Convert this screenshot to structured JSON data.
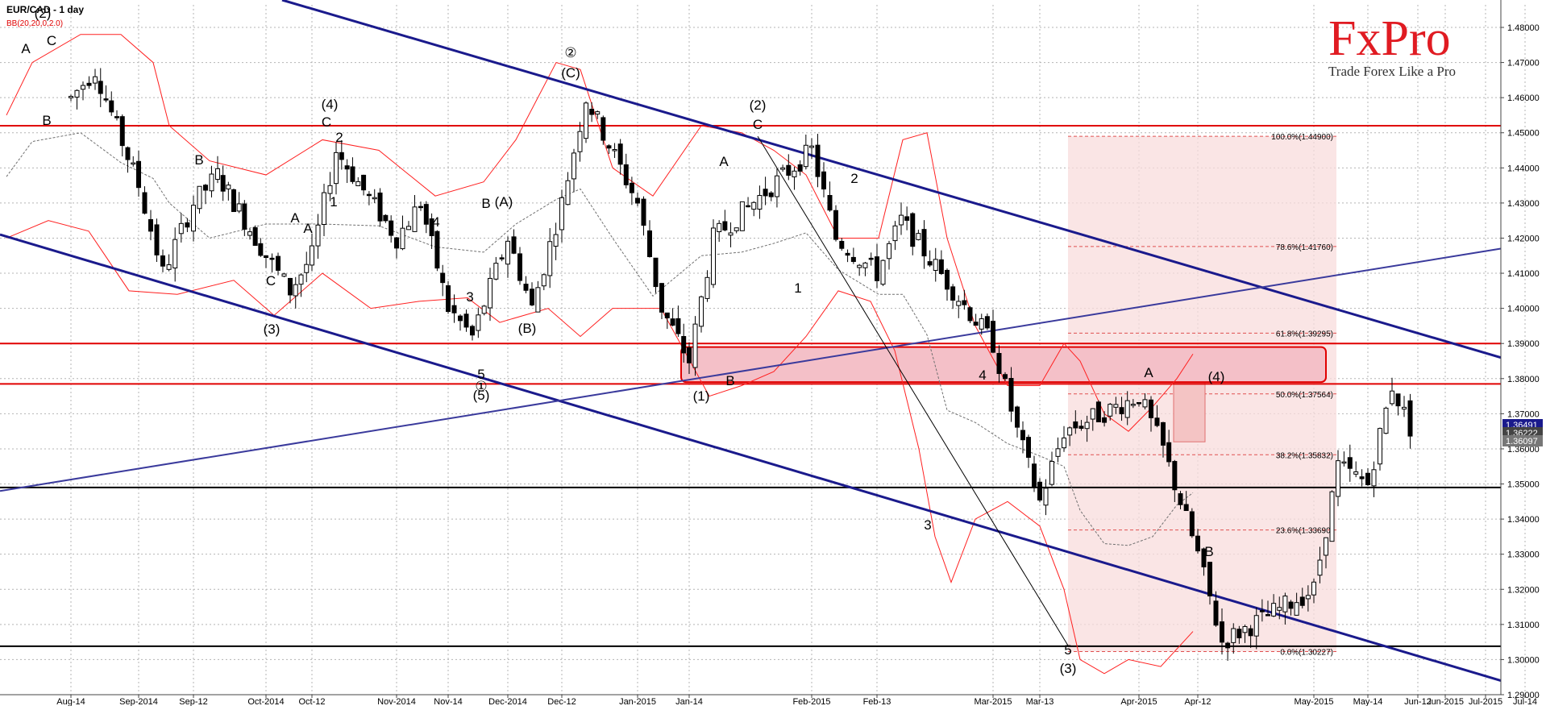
{
  "header": {
    "symbol": "EUR/CAD - 1 day",
    "indicator": "BB(20,20,0,2.0)"
  },
  "brand": {
    "logo_text": "FxPro",
    "tagline": "Trade Forex Like a Pro"
  },
  "colors": {
    "background": "#ffffff",
    "grid": "#b4b4b4",
    "candle_bull": "#ffffff",
    "candle_bear": "#000000",
    "bollinger": "#ff2020",
    "bollinger_mid": "#707070",
    "trendline": "#1a1a8c",
    "resistance": "#e00000",
    "support": "#000000",
    "fib_zone": "#f8dcdc",
    "logo": "#e01b22"
  },
  "chart_data": {
    "type": "candlestick",
    "title": "EUR/CAD - 1 day",
    "xlabel": "",
    "ylabel": "",
    "ylim": [
      1.287,
      1.488
    ],
    "grid": true,
    "x_ticks": [
      "Aug-14",
      "Sep-2014",
      "Sep-12",
      "Oct-2014",
      "Oct-12",
      "Nov-2014",
      "Nov-14",
      "Dec-2014",
      "Dec-12",
      "Jan-2015",
      "Jan-14",
      "Feb-2015",
      "Feb-13",
      "Mar-2015",
      "Mar-13",
      "Apr-2015",
      "Apr-12",
      "May-2015",
      "May-14",
      "Jun-2015",
      "Jun-12",
      "Jul-2015",
      "Jul-14"
    ],
    "y_ticks": [
      "1.48000",
      "1.47000",
      "1.46000",
      "1.45000",
      "1.44000",
      "1.43000",
      "1.42000",
      "1.41000",
      "1.40000",
      "1.39000",
      "1.38000",
      "1.37000",
      "1.36000",
      "1.35000",
      "1.34000",
      "1.33000",
      "1.32000",
      "1.31000",
      "1.30000",
      "1.29000"
    ],
    "close_path": [
      [
        "Aug-14",
        1.46
      ],
      [
        "Aug-14",
        1.468
      ],
      [
        "Sep-2014",
        1.435
      ],
      [
        "Sep-2014",
        1.41
      ],
      [
        "Sep-12",
        1.43
      ],
      [
        "Sep-12",
        1.438
      ],
      [
        "Oct-2014",
        1.415
      ],
      [
        "Oct-2014",
        1.405
      ],
      [
        "Oct-12",
        1.415
      ],
      [
        "Oct-12",
        1.445
      ],
      [
        "Nov-2014",
        1.42
      ],
      [
        "Nov-2014",
        1.43
      ],
      [
        "Nov-14",
        1.4
      ],
      [
        "Nov-14",
        1.392
      ],
      [
        "Dec-2014",
        1.42
      ],
      [
        "Dec-2014",
        1.4
      ],
      [
        "Dec-12",
        1.43
      ],
      [
        "Dec-12",
        1.46
      ],
      [
        "Jan-2015",
        1.43
      ],
      [
        "Jan-2015",
        1.4
      ],
      [
        "Jan-14",
        1.385
      ],
      [
        "Jan-14",
        1.42
      ],
      [
        "Feb-2015",
        1.445
      ],
      [
        "Feb-2015",
        1.42
      ],
      [
        "Feb-13",
        1.41
      ],
      [
        "Feb-13",
        1.425
      ],
      [
        "Mar-2015",
        1.39
      ],
      [
        "Mar-2015",
        1.365
      ],
      [
        "Mar-13",
        1.345
      ],
      [
        "Mar-13",
        1.365
      ],
      [
        "Apr-2015",
        1.375
      ],
      [
        "Apr-2015",
        1.36
      ],
      [
        "Apr-12",
        1.33
      ],
      [
        "Apr-12",
        1.305
      ],
      [
        "May-2015",
        1.32
      ],
      [
        "May-2015",
        1.355
      ],
      [
        "May-14",
        1.35
      ],
      [
        "May-14",
        1.378
      ],
      [
        "May-14",
        1.362
      ]
    ],
    "levels": {
      "resistance": [
        1.452,
        1.39,
        1.3785
      ],
      "support": [
        1.349,
        1.3038
      ]
    },
    "fibonacci": [
      {
        "label": "100.0%(1.44900)",
        "value": 1.449
      },
      {
        "label": "78.6%(1.41760)",
        "value": 1.4176
      },
      {
        "label": "61.8%(1.39295)",
        "value": 1.39295
      },
      {
        "label": "50.0%(1.37564)",
        "value": 1.37564
      },
      {
        "label": "38.2%(1.35832)",
        "value": 1.35832
      },
      {
        "label": "23.6%(1.33690)",
        "value": 1.3369
      },
      {
        "label": "0.0%(1.30227)",
        "value": 1.30227
      }
    ],
    "price_tags": [
      "1.36491",
      "1.36222",
      "1.36097"
    ],
    "wave_labels": [
      "A",
      "(2)",
      "C",
      "B",
      "(4)",
      "C",
      "2",
      "1",
      "A",
      "B",
      "A",
      "C",
      "(3)",
      "B",
      "4",
      "3",
      "(A)",
      "5",
      "(5)",
      "(B)",
      "①",
      "②",
      "(C)",
      "(1)",
      "A",
      "B",
      "(2)",
      "C",
      "2",
      "1",
      "3",
      "4",
      "5",
      "(3)",
      "A",
      "(4)",
      "B"
    ]
  }
}
